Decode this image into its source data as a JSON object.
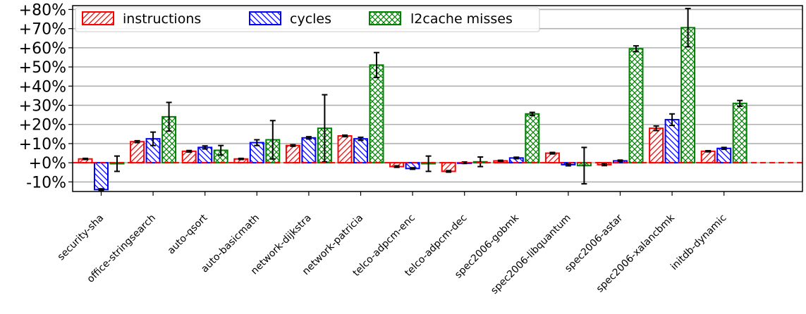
{
  "chart_data": {
    "type": "bar",
    "categories": [
      "security-sha",
      "office-stringsearch",
      "auto-qsort",
      "auto-basicmath",
      "network-dijkstra",
      "network-patricia",
      "telco-adpcm-enc",
      "telco-adpcm-dec",
      "spec2006-gobmk",
      "spec2006-libquantum",
      "spec2006-astar",
      "spec2006-xalancbmk",
      "initdb-dynamic"
    ],
    "series": [
      {
        "name": "instructions",
        "color": "#ff0000",
        "hatch": "forward-diagonal",
        "values": [
          2,
          11,
          6,
          2,
          9,
          14,
          -2,
          -4.5,
          1,
          5,
          -1,
          18,
          6
        ],
        "error": [
          0.3,
          0.5,
          0.4,
          0.3,
          0.4,
          0.4,
          0.4,
          0.4,
          0.3,
          0.4,
          0.5,
          1.2,
          0.3
        ]
      },
      {
        "name": "cycles",
        "color": "#0000ff",
        "hatch": "back-diagonal",
        "values": [
          -14,
          12.5,
          8,
          10.5,
          13,
          12.5,
          -3,
          0,
          2.5,
          -1,
          1,
          22.5,
          7.5
        ],
        "error": [
          0.4,
          3.5,
          0.8,
          1.5,
          0.6,
          0.8,
          0.4,
          0.4,
          0.4,
          0.6,
          0.4,
          3,
          0.5
        ]
      },
      {
        "name": "l2cache misses",
        "color": "#008000",
        "hatch": "cross",
        "values": [
          -0.5,
          24,
          6.5,
          12,
          18,
          51,
          -0.5,
          0.5,
          25.5,
          -1.5,
          59.5,
          70.5,
          31
        ],
        "error": [
          4,
          7.5,
          2.5,
          10,
          17.5,
          6.5,
          4,
          2.5,
          0.8,
          9.5,
          1.5,
          10,
          1.5
        ]
      }
    ],
    "ytick_labels": [
      "-10%",
      "+0%",
      "+10%",
      "+20%",
      "+30%",
      "+40%",
      "+50%",
      "+60%",
      "+70%",
      "+80%"
    ],
    "ytick_values": [
      -10,
      0,
      10,
      20,
      30,
      40,
      50,
      60,
      70,
      80
    ],
    "ylim": [
      -15,
      82
    ],
    "grid": "horizontal",
    "reference_line": {
      "y": 0,
      "color": "#ff0000",
      "style": "dashed"
    },
    "legend_position": "top-left",
    "xtick_rotation": -45
  }
}
